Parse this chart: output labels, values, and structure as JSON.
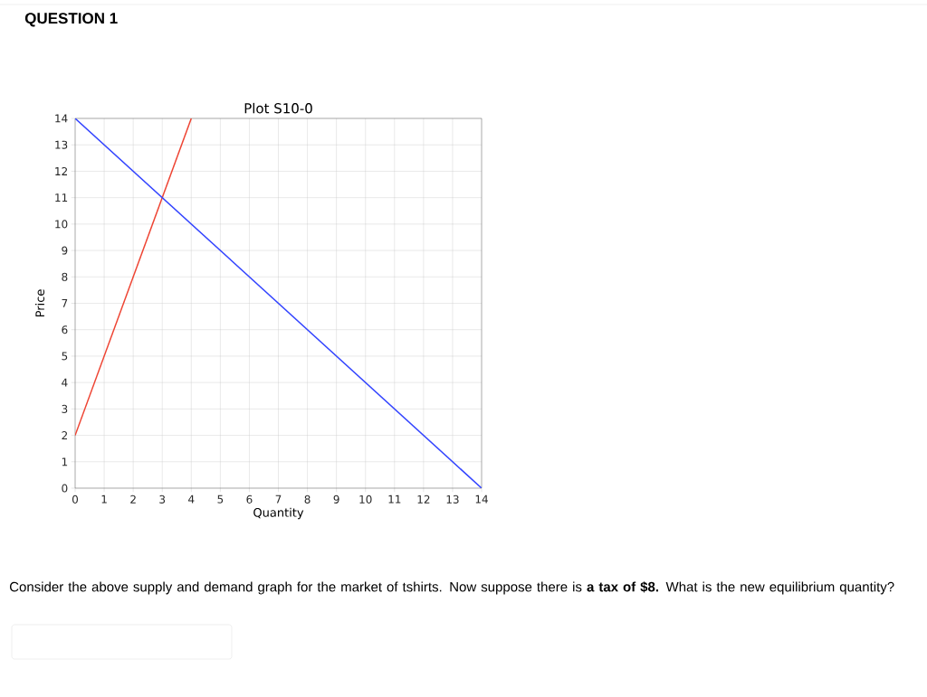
{
  "chart_data": {
    "type": "line",
    "title": "Plot S10-0",
    "xlabel": "Quantity",
    "ylabel": "Price",
    "annotations": [
      "QUESTION 1",
      "Consider the above supply and demand graph for the market of tshirts. Now suppose there is **a tax of $8.** What is the new equilibrium quantity?"
    ],
    "series": [
      {
        "color": "#ee4433",
        "x": [
          0,
          4
        ],
        "values": [
          2,
          14
        ]
      },
      {
        "color": "#3344ff",
        "x": [
          0,
          14
        ],
        "values": [
          14,
          0
        ]
      }
    ],
    "xlim": [
      0,
      14
    ],
    "ylim": [
      0,
      14
    ],
    "xticks": [
      0,
      1,
      2,
      3,
      4,
      5,
      6,
      7,
      8,
      9,
      10,
      11,
      12,
      13,
      14
    ],
    "yticks": [
      0,
      1,
      2,
      3,
      4,
      5,
      6,
      7,
      8,
      9,
      10,
      11,
      12,
      13,
      14
    ],
    "grid": true,
    "line_style": "solid",
    "marker": "none"
  }
}
